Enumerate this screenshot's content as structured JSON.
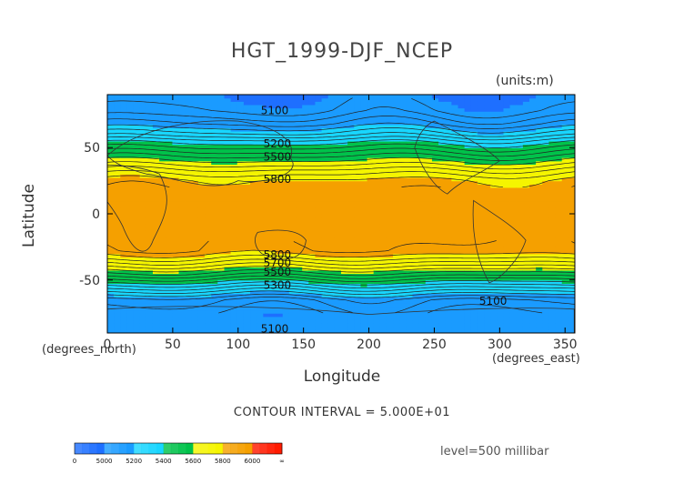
{
  "chart_data": {
    "type": "heatmap",
    "title": "HGT_1999-DJF_NCEP",
    "units": "(units:m)",
    "xlabel": "Longitude",
    "ylabel": "Latitude",
    "x_units_note": "(degrees_east)",
    "y_units_note": "(degrees_north)",
    "xlim": [
      0,
      357.5
    ],
    "ylim": [
      -90,
      90
    ],
    "xticks": [
      0,
      50,
      100,
      150,
      200,
      250,
      300,
      350
    ],
    "yticks": [
      -50,
      0,
      50
    ],
    "contour_interval_text": "CONTOUR INTERVAL = 5.000E+01",
    "level_text": "level=500 millibar",
    "contour_labels": [
      {
        "text": "5100",
        "lon": 128,
        "lat": 78
      },
      {
        "text": "5200",
        "lon": 130,
        "lat": 53
      },
      {
        "text": "5500",
        "lon": 130,
        "lat": 43
      },
      {
        "text": "5800",
        "lon": 130,
        "lat": 26
      },
      {
        "text": "5800",
        "lon": 130,
        "lat": -31
      },
      {
        "text": "5700",
        "lon": 130,
        "lat": -37
      },
      {
        "text": "5500",
        "lon": 130,
        "lat": -44
      },
      {
        "text": "5300",
        "lon": 130,
        "lat": -54
      },
      {
        "text": "5100",
        "lon": 295,
        "lat": -66
      },
      {
        "text": "5100",
        "lon": 128,
        "lat": -87
      }
    ],
    "zonal_profile": {
      "lat": [
        -90,
        -75,
        -65,
        -58,
        -52,
        -46,
        -40,
        -34,
        -28,
        -15,
        0,
        15,
        25,
        32,
        38,
        44,
        50,
        55,
        60,
        68,
        78,
        90
      ],
      "hgt": [
        5080,
        5050,
        5110,
        5260,
        5390,
        5520,
        5640,
        5750,
        5840,
        5870,
        5870,
        5860,
        5810,
        5720,
        5630,
        5540,
        5450,
        5370,
        5270,
        5150,
        5050,
        5000
      ]
    },
    "colorbar": {
      "tick_labels": [
        "0",
        "5000",
        "5200",
        "5400",
        "5600",
        "5800",
        "6000",
        "∞"
      ],
      "colors": [
        "#1e6fff",
        "#1a9bff",
        "#19d6ff",
        "#00c24a",
        "#f5f500",
        "#f5a000",
        "#ff1a00"
      ]
    }
  }
}
